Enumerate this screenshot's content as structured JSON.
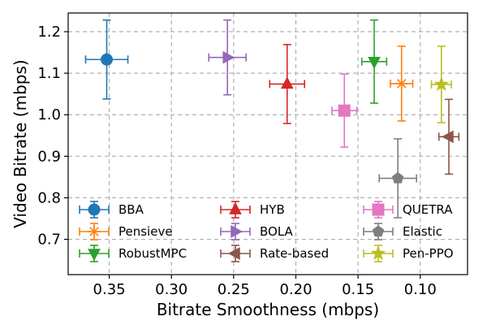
{
  "chart_data": {
    "type": "scatter",
    "title": "",
    "xlabel": "Bitrate Smoothness (mbps)",
    "ylabel": "Video Bitrate (mbps)",
    "xlim": [
      0.383,
      0.062
    ],
    "ylim": [
      0.615,
      1.245
    ],
    "x_inverted": true,
    "grid": true,
    "xticks": [
      0.35,
      0.3,
      0.25,
      0.2,
      0.15,
      0.1
    ],
    "xtick_labels": [
      "0.35",
      "0.30",
      "0.25",
      "0.20",
      "0.15",
      "0.10"
    ],
    "yticks": [
      0.7,
      0.8,
      0.9,
      1.0,
      1.1,
      1.2
    ],
    "ytick_labels": [
      "0.7",
      "0.8",
      "0.9",
      "1.0",
      "1.1",
      "1.2"
    ],
    "legend_position": "lower-center",
    "legend_columns": 3,
    "series": [
      {
        "name": "BBA",
        "x": 0.352,
        "y": 1.133,
        "xerr": 0.017,
        "yerr": 0.095,
        "color": "#1f77b4",
        "marker": "circle"
      },
      {
        "name": "Pensieve",
        "x": 0.115,
        "y": 1.075,
        "xerr": 0.009,
        "yerr": 0.09,
        "color": "#ff7f0e",
        "marker": "star-x"
      },
      {
        "name": "RobustMPC",
        "x": 0.137,
        "y": 1.128,
        "xerr": 0.01,
        "yerr": 0.1,
        "color": "#2ca02c",
        "marker": "triangle-down"
      },
      {
        "name": "HYB",
        "x": 0.207,
        "y": 1.074,
        "xerr": 0.014,
        "yerr": 0.095,
        "color": "#d62728",
        "marker": "triangle-up"
      },
      {
        "name": "BOLA",
        "x": 0.255,
        "y": 1.138,
        "xerr": 0.015,
        "yerr": 0.09,
        "color": "#9467bd",
        "marker": "triangle-right"
      },
      {
        "name": "Rate-based",
        "x": 0.077,
        "y": 0.947,
        "xerr": 0.008,
        "yerr": 0.09,
        "color": "#8c564b",
        "marker": "triangle-left"
      },
      {
        "name": "QUETRA",
        "x": 0.161,
        "y": 1.01,
        "xerr": 0.01,
        "yerr": 0.088,
        "color": "#e377c2",
        "marker": "square"
      },
      {
        "name": "Elastic",
        "x": 0.118,
        "y": 0.847,
        "xerr": 0.015,
        "yerr": 0.095,
        "color": "#7f7f7f",
        "marker": "pentagon"
      },
      {
        "name": "Pen-PPO",
        "x": 0.083,
        "y": 1.073,
        "xerr": 0.008,
        "yerr": 0.092,
        "color": "#bcbd22",
        "marker": "star"
      }
    ]
  }
}
